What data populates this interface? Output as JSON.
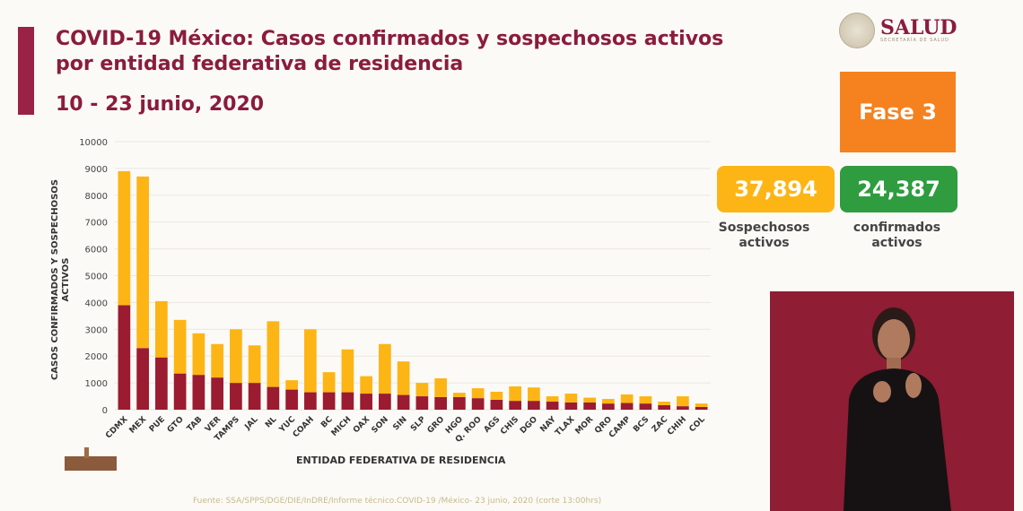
{
  "header": {
    "title_line1": "COVID-19 México: Casos confirmados y sospechosos activos",
    "title_line2": "por entidad federativa de residencia",
    "date_range": "10 - 23 junio, 2020"
  },
  "logo": {
    "name": "SALUD",
    "subtitle": "SECRETARÍA DE SALUD"
  },
  "phase": {
    "label": "Fase 3",
    "color": "#f5811f"
  },
  "kpis": [
    {
      "value": "37,894",
      "label_line1": "Sospechosos",
      "label_line2": "activos",
      "color": "#fdb515"
    },
    {
      "value": "24,387",
      "label_line1": "confirmados",
      "label_line2": "activos",
      "color": "#2e9c3f"
    }
  ],
  "footer": {
    "source": "Fuente: SSA/SPPS/DGE/DIE/InDRE/Informe técnico.COVID-19 /México- 23 junio, 2020 (corte 13:00hrs)"
  },
  "chart_data": {
    "type": "bar",
    "stacked": true,
    "title": "COVID-19 México: Casos confirmados y sospechosos activos por entidad federativa de residencia",
    "xlabel": "ENTIDAD FEDERATIVA DE RESIDENCIA",
    "ylabel_line1": "CASOS CONFIRMADOS Y SOSPECHOSOS",
    "ylabel_line2": "ACTIVOS",
    "ylim": [
      0,
      10000
    ],
    "yticks": [
      "0",
      "1000",
      "2000",
      "3000",
      "4000",
      "5000",
      "6000",
      "7000",
      "8000",
      "9000",
      "10000"
    ],
    "grid": true,
    "categories": [
      "CDMX",
      "MEX",
      "PUE",
      "GTO",
      "TAB",
      "VER",
      "TAMPS",
      "JAL",
      "NL",
      "YUC",
      "COAH",
      "BC",
      "MICH",
      "OAX",
      "SON",
      "SIN",
      "SLP",
      "GRO",
      "HGO",
      "Q. ROO",
      "AGS",
      "CHIS",
      "DGO",
      "NAY",
      "TLAX",
      "MOR",
      "QRO",
      "CAMP",
      "BCS",
      "ZAC",
      "CHIH",
      "COL"
    ],
    "series": [
      {
        "role": "confirmados",
        "color": "#9b1b30",
        "values": [
          3900,
          2300,
          1950,
          1350,
          1300,
          1200,
          1000,
          1000,
          850,
          750,
          650,
          650,
          650,
          600,
          600,
          550,
          500,
          470,
          470,
          430,
          370,
          330,
          330,
          300,
          270,
          270,
          230,
          250,
          230,
          170,
          130,
          100
        ]
      },
      {
        "role": "sospechosos",
        "color": "#fdb515",
        "values": [
          5000,
          6400,
          2100,
          2000,
          1550,
          1250,
          2000,
          1400,
          2450,
          350,
          2350,
          750,
          1600,
          650,
          1850,
          1250,
          500,
          700,
          160,
          370,
          300,
          540,
          500,
          200,
          330,
          180,
          170,
          320,
          270,
          130,
          370,
          130
        ]
      }
    ]
  }
}
